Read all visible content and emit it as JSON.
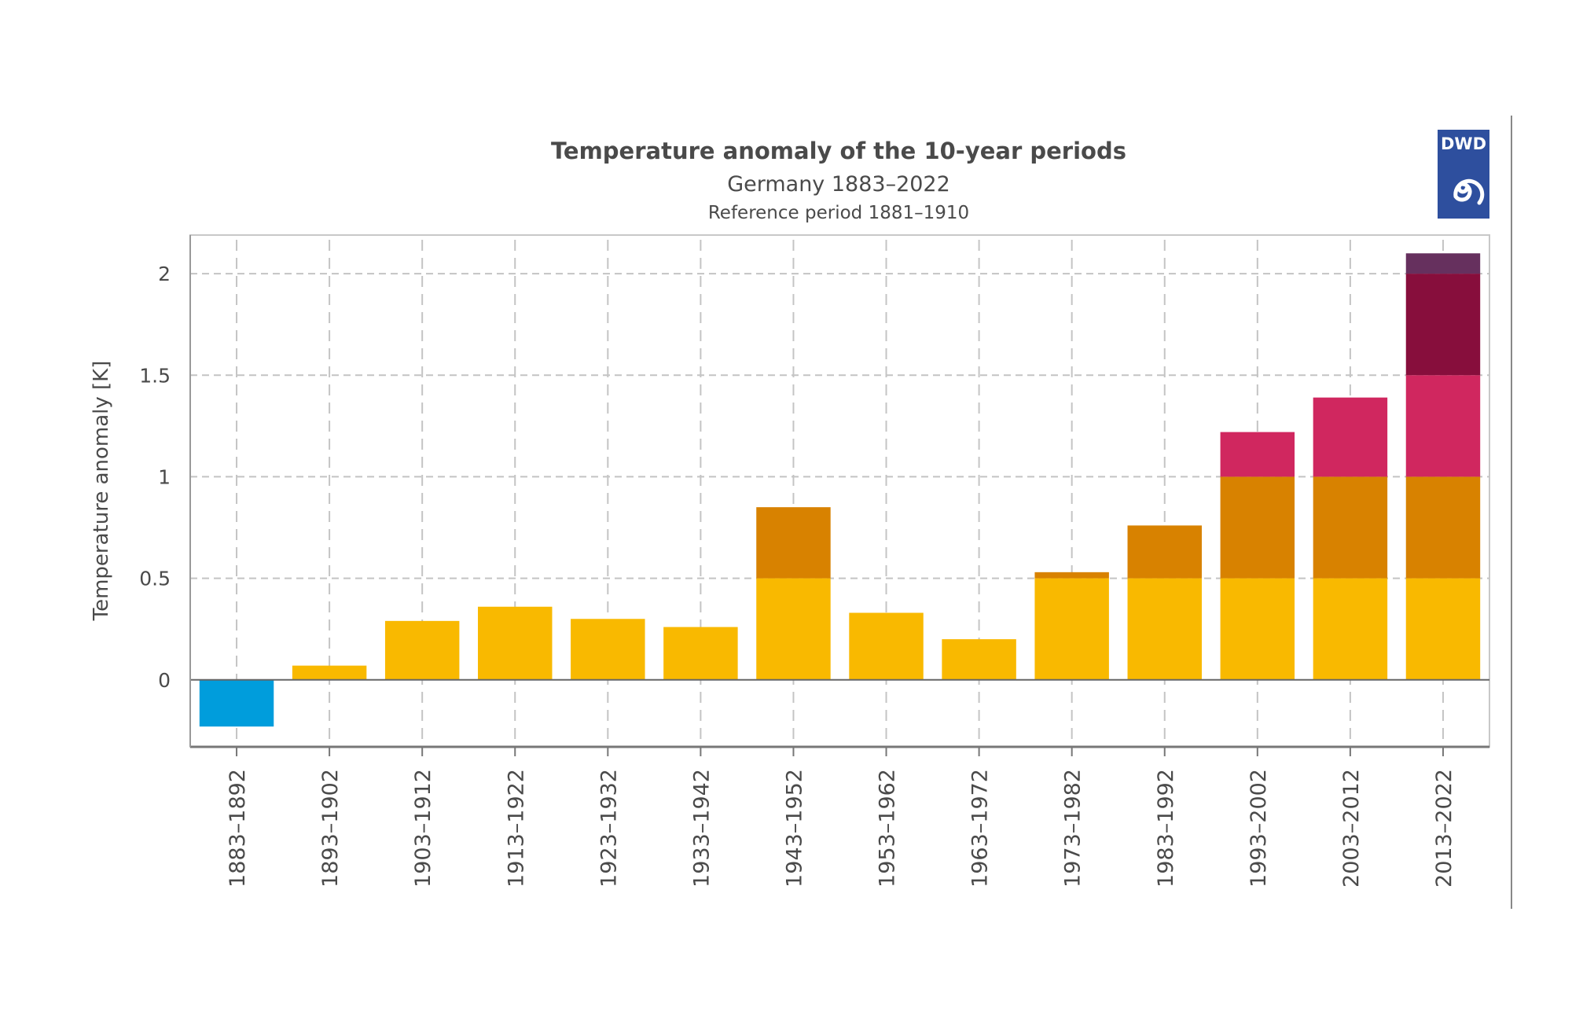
{
  "chart_data": {
    "type": "bar",
    "stacked_bands": true,
    "title": "Temperature anomaly of the 10-year periods",
    "subtitle": "Germany 1883–2022",
    "subtitle2": "Reference period 1881–1910",
    "xlabel": "",
    "ylabel": "Temperature anomaly [K]",
    "ylim": [
      -0.33,
      2.19
    ],
    "yticks": [
      0,
      0.5,
      1,
      1.5,
      2
    ],
    "ytick_labels": [
      "0",
      "0.5",
      "1",
      "1.5",
      "2"
    ],
    "grid": true,
    "categories": [
      "1883–1892",
      "1893–1902",
      "1903–1912",
      "1913–1922",
      "1923–1932",
      "1933–1942",
      "1943–1952",
      "1953–1962",
      "1963–1972",
      "1973–1982",
      "1983–1992",
      "1993–2002",
      "2003–2012",
      "2013–2022"
    ],
    "values": [
      -0.23,
      0.07,
      0.29,
      0.36,
      0.3,
      0.26,
      0.85,
      0.33,
      0.2,
      0.53,
      0.76,
      1.22,
      1.39,
      2.1
    ],
    "color_bands": [
      {
        "from": -10,
        "to": 0,
        "color": "#009ddc"
      },
      {
        "from": 0,
        "to": 0.5,
        "color": "#f9b900"
      },
      {
        "from": 0.5,
        "to": 1,
        "color": "#d88200"
      },
      {
        "from": 1,
        "to": 1.5,
        "color": "#d0275f"
      },
      {
        "from": 1.5,
        "to": 2,
        "color": "#870e3c"
      },
      {
        "from": 2,
        "to": 2.5,
        "color": "#66305e"
      }
    ]
  },
  "logo": {
    "text": "DWD",
    "color": "#2e4f9e"
  }
}
